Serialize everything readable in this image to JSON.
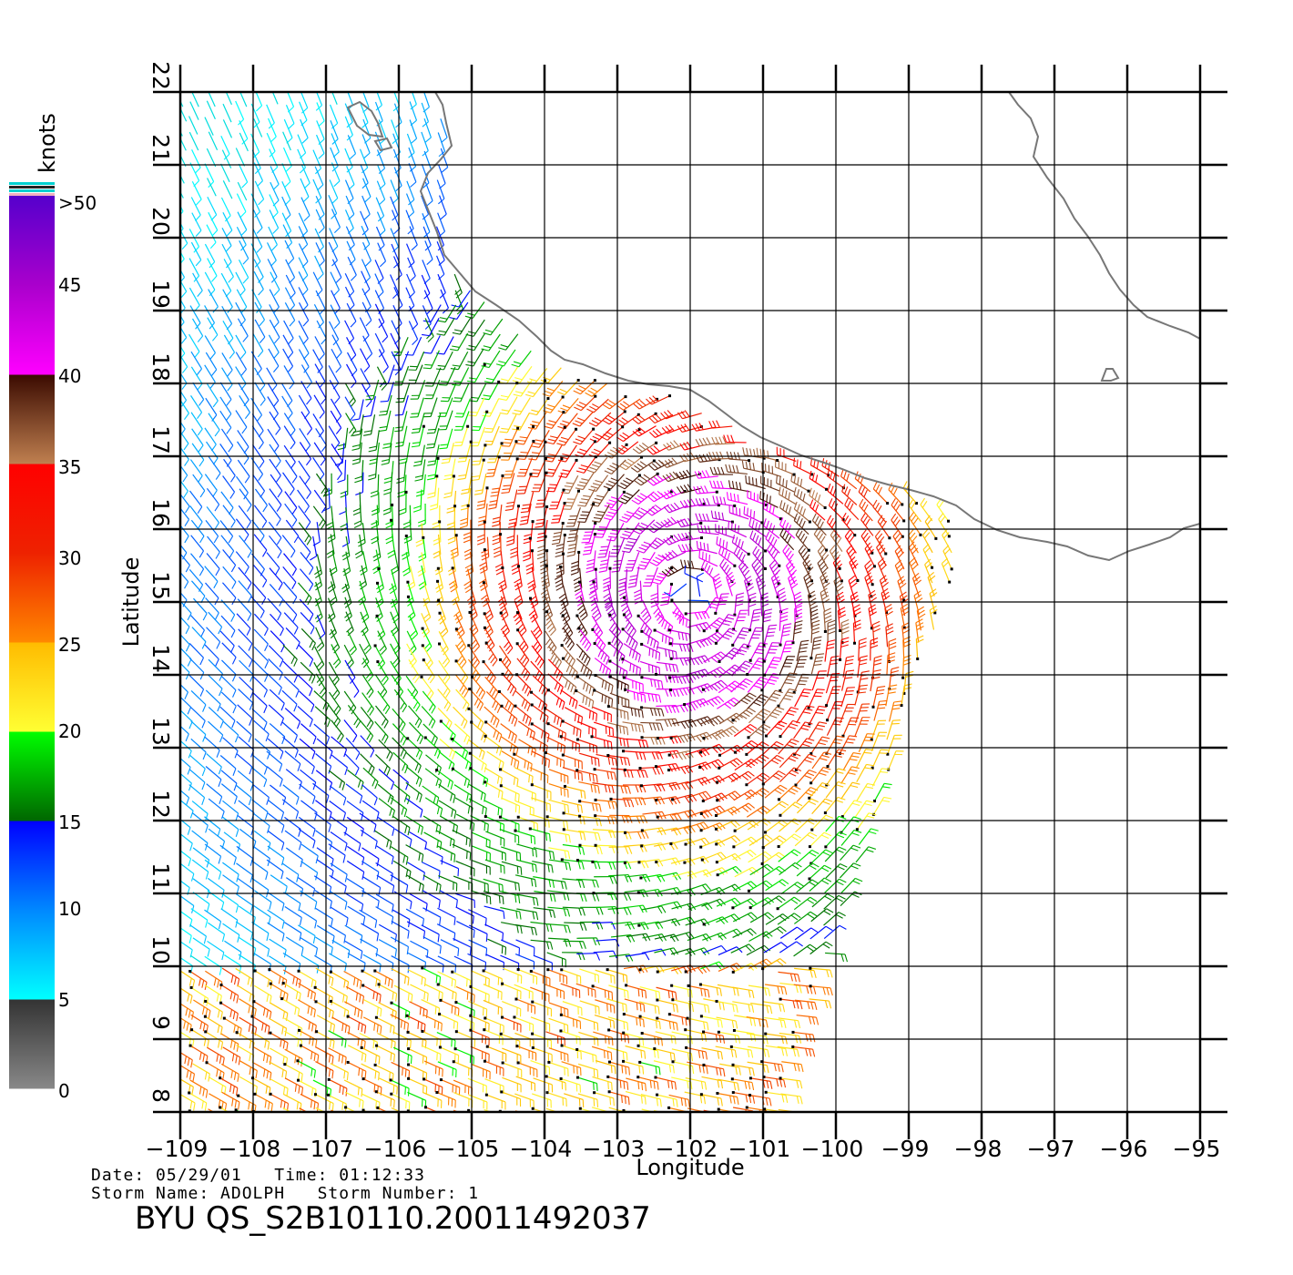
{
  "map": {
    "region": "Eastern Pacific off southwest Mexico",
    "projection": "equirectangular",
    "extent": {
      "lon": [
        -109,
        -95
      ],
      "lat": [
        8,
        22
      ]
    },
    "grid": true,
    "longitude_ticks": [
      "−109",
      "−108",
      "−107",
      "−106",
      "−105",
      "−104",
      "−103",
      "−102",
      "−101",
      "−100",
      "−99",
      "−98",
      "−97",
      "−96",
      "−95"
    ],
    "latitude_ticks": [
      "8",
      "9",
      "10",
      "11",
      "12",
      "13",
      "14",
      "15",
      "16",
      "17",
      "18",
      "19",
      "20",
      "21",
      "22"
    ],
    "xlabel": "Longitude",
    "ylabel": "Latitude",
    "coastline_color": "#777777",
    "storm_center": {
      "lon": -102.0,
      "lat": 15.1
    },
    "swath": {
      "west_lon": -109,
      "east_edge_lon_at_lat16": -98.2,
      "east_edge_lon_at_lat8": -100.8
    }
  },
  "colorbar": {
    "units": "knots",
    "labels": [
      ">50",
      "45",
      "40",
      "35",
      "30",
      "25",
      "20",
      "15",
      "10",
      "5",
      "0"
    ],
    "stops": [
      {
        "knots": 0,
        "color": "#888888"
      },
      {
        "knots": 5,
        "color": "#333333"
      },
      {
        "knots": 5,
        "color": "#00ffff"
      },
      {
        "knots": 10,
        "color": "#0088ff"
      },
      {
        "knots": 15,
        "color": "#0000ff"
      },
      {
        "knots": 15,
        "color": "#006600"
      },
      {
        "knots": 20,
        "color": "#00ff00"
      },
      {
        "knots": 20,
        "color": "#ffff33"
      },
      {
        "knots": 25,
        "color": "#ffbb00"
      },
      {
        "knots": 25,
        "color": "#ff8800"
      },
      {
        "knots": 30,
        "color": "#ee2200"
      },
      {
        "knots": 35,
        "color": "#ff0000"
      },
      {
        "knots": 35,
        "color": "#c08050"
      },
      {
        "knots": 40,
        "color": "#3a0a00"
      },
      {
        "knots": 40,
        "color": "#ff00ff"
      },
      {
        "knots": 45,
        "color": "#aa00cc"
      },
      {
        "knots": 50,
        "color": "#5500cc"
      }
    ]
  },
  "footer": {
    "date_line": "Date: 05/29/01   Time: 01:12:33",
    "storm_line": "Storm Name: ADOLPH   Storm Number: 1",
    "product_id": "BYU QS_S2B10110.20011492037"
  }
}
